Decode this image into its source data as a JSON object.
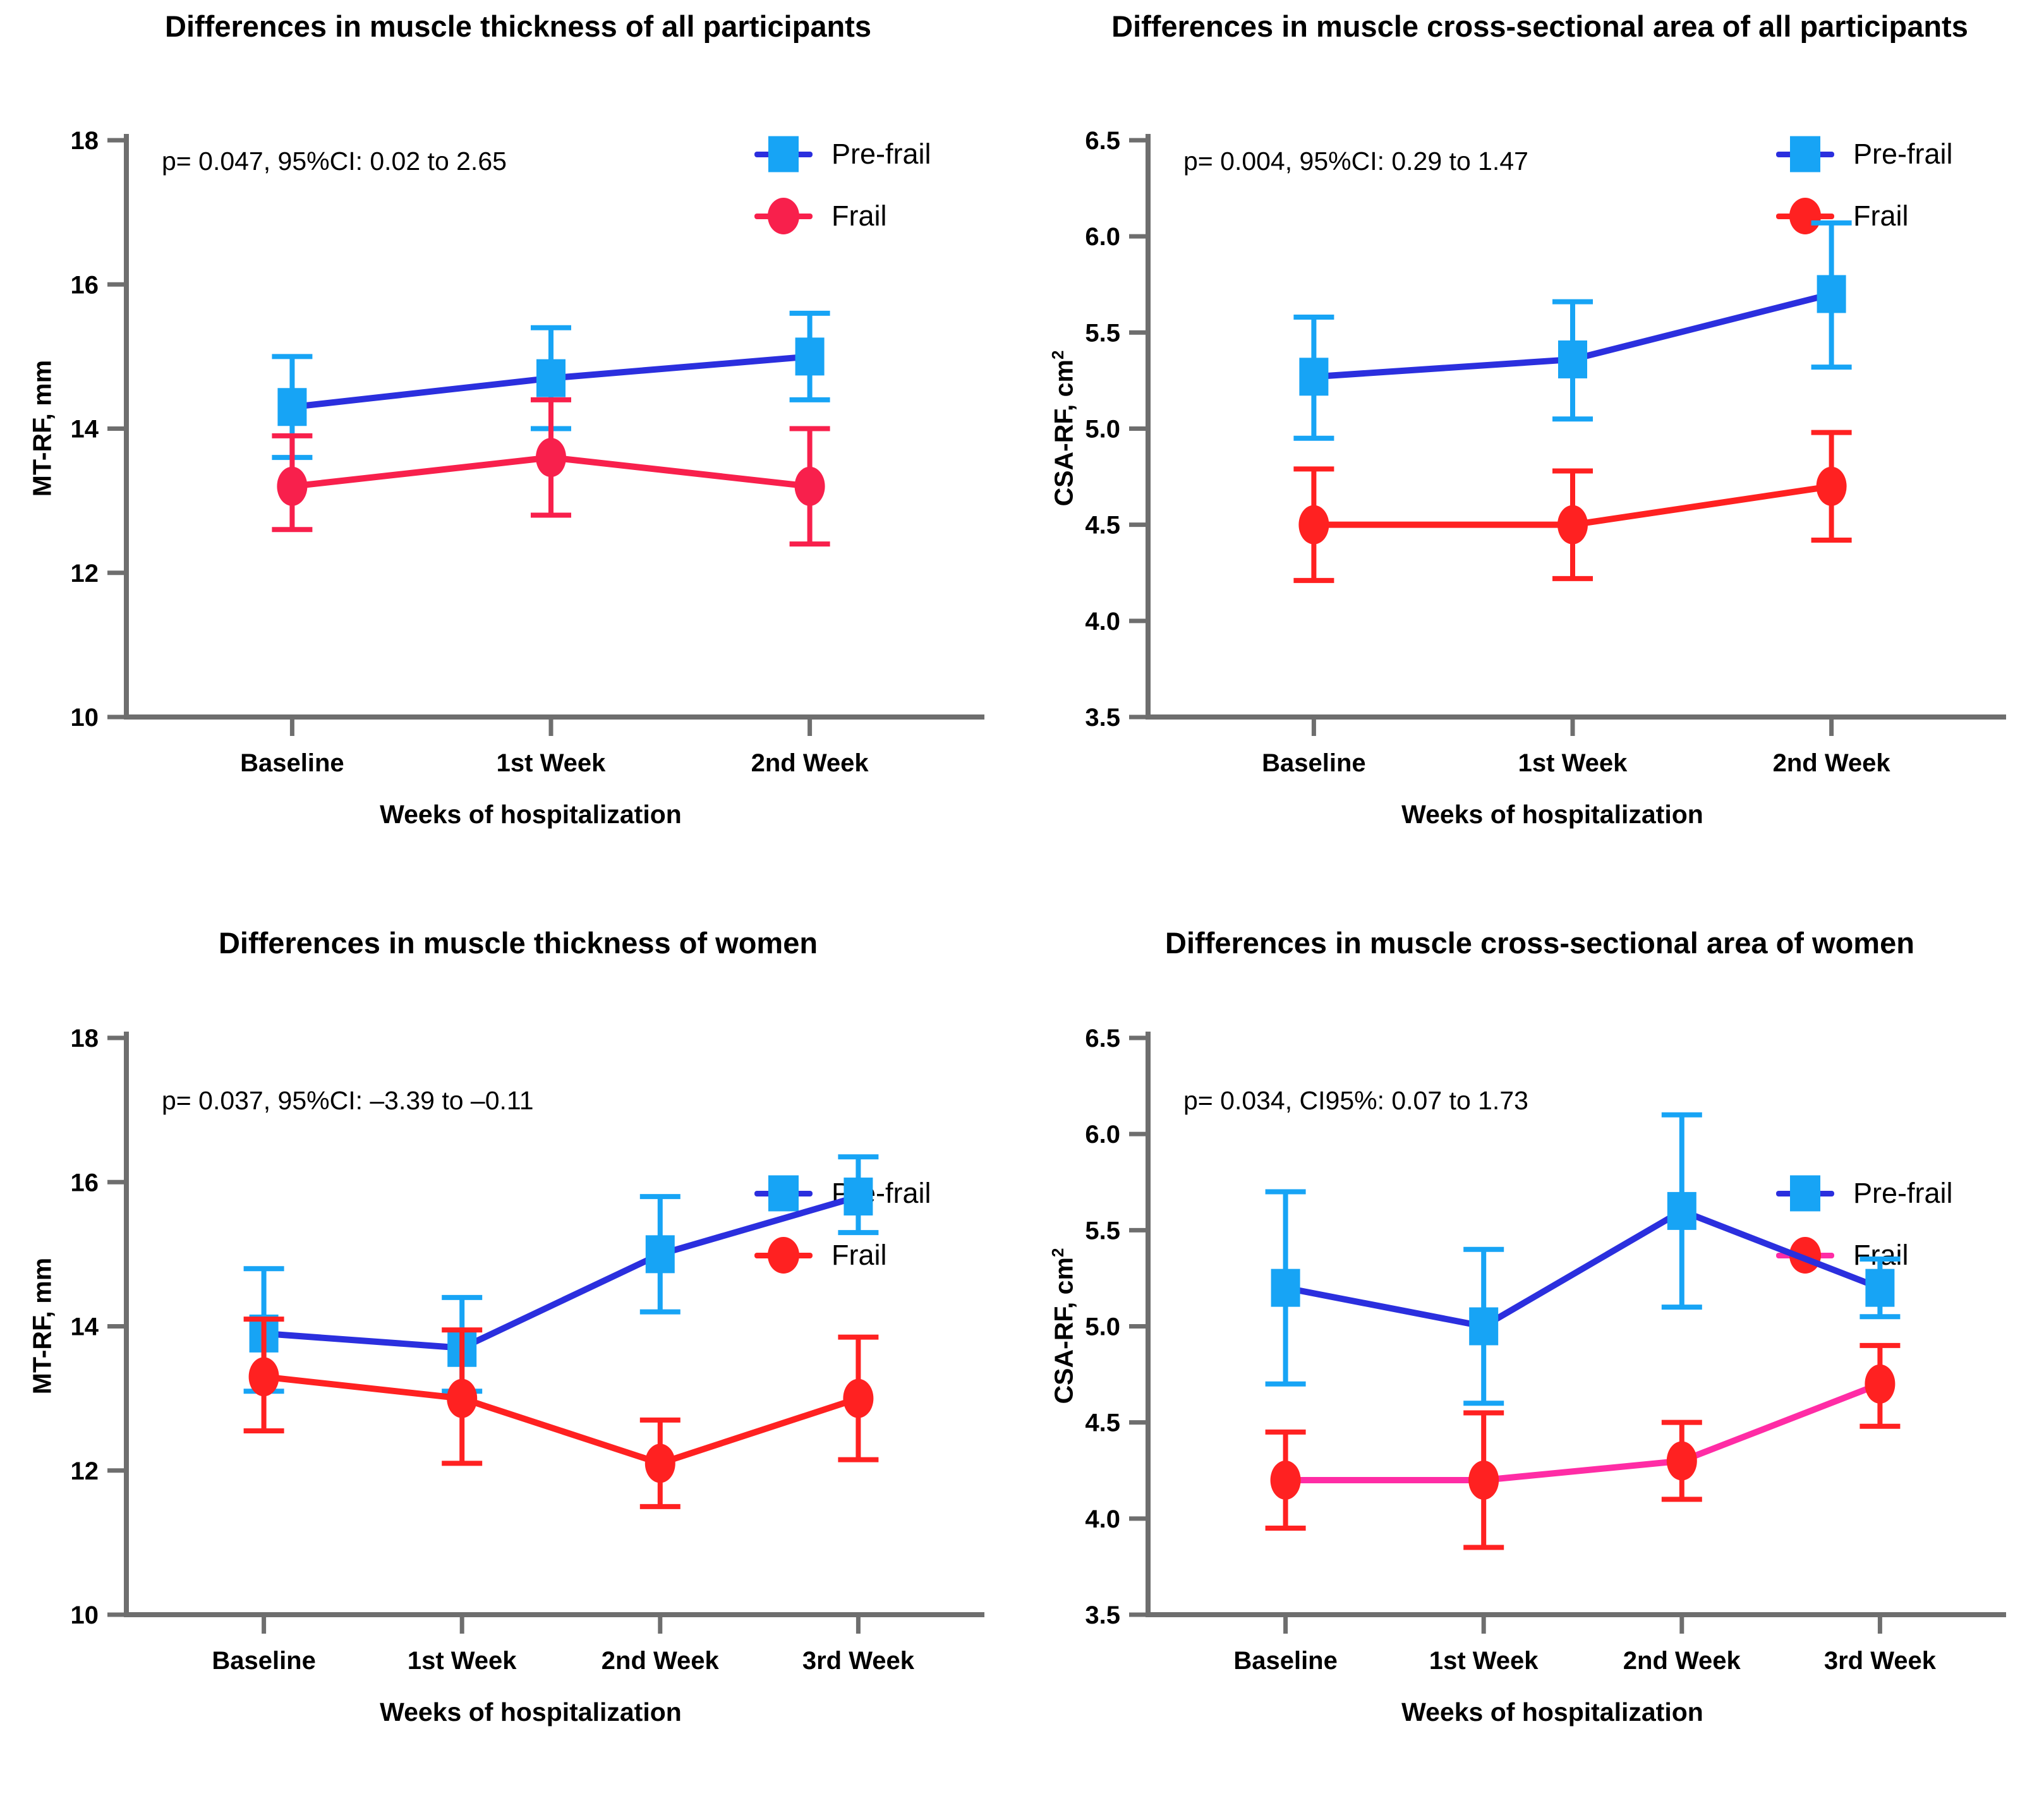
{
  "figure": {
    "background": "#ffffff",
    "axis_color": "#6e6e6e",
    "text_color": "#000000"
  },
  "chart_data": [
    {
      "type": "line",
      "title": "Differences in muscle thickness of all participants",
      "annotation": "p= 0.047, 95%CI: 0.02 to 2.65",
      "xlabel": "Weeks of hospitalization",
      "ylabel_base": "MT-RF, mm",
      "ylabel_sup": "",
      "ylim": [
        10,
        18
      ],
      "yticks": [
        10,
        12,
        14,
        16,
        18
      ],
      "ytick_decimals": 0,
      "grid": false,
      "legend_position": "top-right",
      "categories": [
        "Baseline",
        "1st Week",
        "2nd Week"
      ],
      "series": [
        {
          "name": "Pre-frail",
          "marker": "square",
          "marker_color": "#17A4F5",
          "line_color": "#2B2FDE",
          "error_color": "#17A4F5",
          "values": [
            14.3,
            14.7,
            15.0
          ],
          "ci_low": [
            13.6,
            14.0,
            14.4
          ],
          "ci_high": [
            15.0,
            15.4,
            15.6
          ]
        },
        {
          "name": "Frail",
          "marker": "circle",
          "marker_color": "#F8204C",
          "line_color": "#F8204C",
          "error_color": "#F8204C",
          "values": [
            13.2,
            13.6,
            13.2
          ],
          "ci_low": [
            12.6,
            12.8,
            12.4
          ],
          "ci_high": [
            13.9,
            14.4,
            14.0
          ]
        }
      ]
    },
    {
      "type": "line",
      "title": "Differences in muscle cross-sectional area of all participants",
      "annotation": "p= 0.004, 95%CI: 0.29 to 1.47",
      "xlabel": "Weeks of hospitalization",
      "ylabel_base": "CSA-RF, cm",
      "ylabel_sup": "2",
      "ylim": [
        3.5,
        6.5
      ],
      "yticks": [
        3.5,
        4.0,
        4.5,
        5.0,
        5.5,
        6.0,
        6.5
      ],
      "ytick_decimals": 1,
      "grid": false,
      "legend_position": "top-right",
      "categories": [
        "Baseline",
        "1st Week",
        "2nd Week"
      ],
      "series": [
        {
          "name": "Pre-frail",
          "marker": "square",
          "marker_color": "#17A4F5",
          "line_color": "#2B2FDE",
          "error_color": "#17A4F5",
          "values": [
            5.27,
            5.36,
            5.7
          ],
          "ci_low": [
            4.95,
            5.05,
            5.32
          ],
          "ci_high": [
            5.58,
            5.66,
            6.07
          ]
        },
        {
          "name": "Frail",
          "marker": "circle",
          "marker_color": "#FF2121",
          "line_color": "#FF2121",
          "error_color": "#FF2121",
          "values": [
            4.5,
            4.5,
            4.7
          ],
          "ci_low": [
            4.21,
            4.22,
            4.42
          ],
          "ci_high": [
            4.79,
            4.78,
            4.98
          ]
        }
      ]
    },
    {
      "type": "line",
      "title": "Differences in muscle thickness of women",
      "annotation": "p= 0.037, 95%CI: –3.39 to –0.11",
      "xlabel": "Weeks of hospitalization",
      "ylabel_base": "MT-RF, mm",
      "ylabel_sup": "",
      "ylim": [
        10,
        18
      ],
      "yticks": [
        10,
        12,
        14,
        16,
        18
      ],
      "ytick_decimals": 0,
      "grid": false,
      "legend_position": "top-right",
      "categories": [
        "Baseline",
        "1st Week",
        "2nd Week",
        "3rd Week"
      ],
      "series": [
        {
          "name": "Pre-frail",
          "marker": "square",
          "marker_color": "#17A4F5",
          "line_color": "#2B2FDE",
          "error_color": "#17A4F5",
          "values": [
            13.9,
            13.7,
            15.0,
            15.8
          ],
          "ci_low": [
            13.1,
            13.1,
            14.2,
            15.3
          ],
          "ci_high": [
            14.8,
            14.4,
            15.8,
            16.35
          ]
        },
        {
          "name": "Frail",
          "marker": "circle",
          "marker_color": "#FF2121",
          "line_color": "#FF2121",
          "error_color": "#FF2121",
          "values": [
            13.3,
            13.0,
            12.1,
            13.0
          ],
          "ci_low": [
            12.55,
            12.1,
            11.5,
            12.15
          ],
          "ci_high": [
            14.1,
            13.95,
            12.7,
            13.85
          ]
        }
      ]
    },
    {
      "type": "line",
      "title": "Differences in muscle cross-sectional area of women",
      "annotation": "p= 0.034, CI95%: 0.07 to 1.73",
      "xlabel": "Weeks of hospitalization",
      "ylabel_base": "CSA-RF, cm",
      "ylabel_sup": "2",
      "ylim": [
        3.5,
        6.5
      ],
      "yticks": [
        3.5,
        4.0,
        4.5,
        5.0,
        5.5,
        6.0,
        6.5
      ],
      "ytick_decimals": 1,
      "grid": false,
      "legend_position": "top-right",
      "categories": [
        "Baseline",
        "1st Week",
        "2nd Week",
        "3rd Week"
      ],
      "series": [
        {
          "name": "Pre-frail",
          "marker": "square",
          "marker_color": "#17A4F5",
          "line_color": "#2B2FDE",
          "error_color": "#17A4F5",
          "values": [
            5.2,
            5.0,
            5.6,
            5.2
          ],
          "ci_low": [
            4.7,
            4.6,
            5.1,
            5.05
          ],
          "ci_high": [
            5.7,
            5.4,
            6.1,
            5.35
          ]
        },
        {
          "name": "Frail",
          "marker": "circle",
          "marker_color": "#FF2121",
          "line_color": "#FF2CA5",
          "error_color": "#FF2121",
          "values": [
            4.2,
            4.2,
            4.3,
            4.7
          ],
          "ci_low": [
            3.95,
            3.85,
            4.1,
            4.48
          ],
          "ci_high": [
            4.45,
            4.55,
            4.5,
            4.9
          ]
        }
      ]
    }
  ]
}
